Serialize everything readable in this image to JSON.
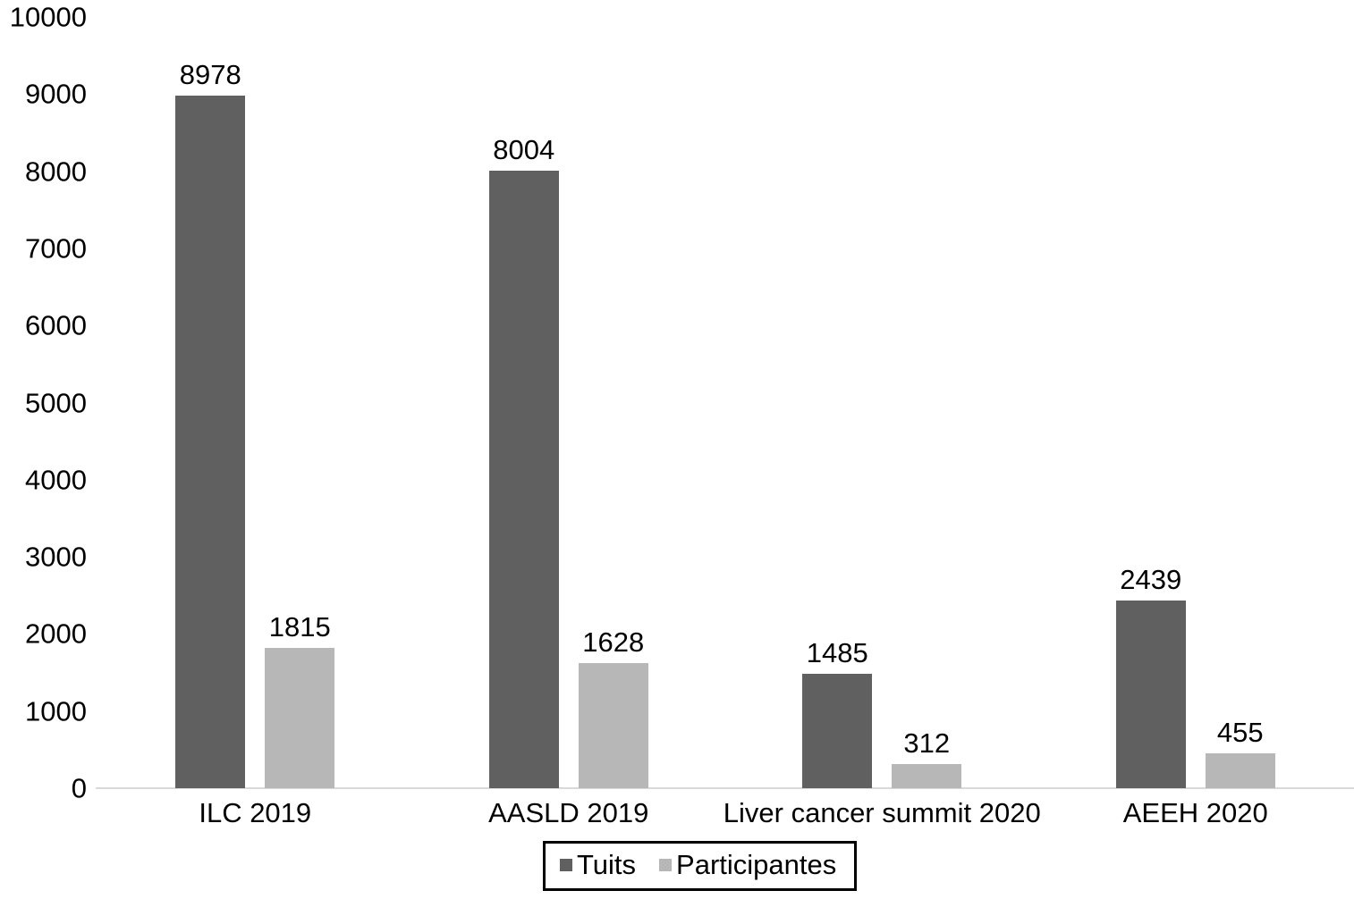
{
  "figure": {
    "background_color": "#ffffff",
    "text_color": "#000000"
  },
  "chart_data": {
    "type": "bar",
    "title": "",
    "xlabel": "",
    "ylabel": "",
    "categories": [
      "ILC 2019",
      "AASLD 2019",
      "Liver cancer summit 2020",
      "AEEH 2020"
    ],
    "series": [
      {
        "name": "Tuits",
        "color": "#606060",
        "values": [
          8978,
          8004,
          1485,
          2439
        ]
      },
      {
        "name": "Participantes",
        "color": "#b7b7b7",
        "values": [
          1815,
          1628,
          312,
          455
        ]
      }
    ],
    "data_labels": [
      [
        "8978",
        "8004",
        "1485",
        "2439"
      ],
      [
        "1815",
        "1628",
        "312",
        "455"
      ]
    ],
    "ylim": [
      0,
      10000
    ],
    "yticks": [
      "0",
      "1000",
      "2000",
      "3000",
      "4000",
      "5000",
      "6000",
      "7000",
      "8000",
      "9000",
      "10000"
    ],
    "grid": false,
    "legend_position": "bottom",
    "axis_line_color": "#d9d9d9",
    "legend_border_color": "#000000"
  }
}
